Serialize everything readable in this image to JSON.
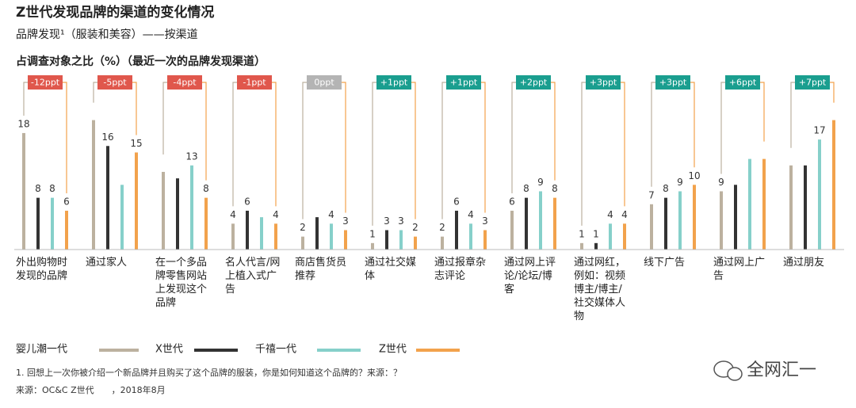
{
  "chart_data": {
    "type": "bar",
    "title": "Z世代发现品牌的渠道的变化情况",
    "subtitle": "品牌发现¹（服装和美容）——按渠道",
    "y_label": "占调查对象之比（%）（最近一次的品牌发现渠道）",
    "categories": [
      "外出购物时发现的品牌",
      "通过家人",
      "在一个多品牌零售网站上发现这个品牌",
      "名人代言/网上植入式广告",
      "商店售货员推荐",
      "通过社交媒体",
      "通过报章杂志评论",
      "通过网上评论/论坛/博客",
      "通过网红，例如：视频博主/博主/社交媒体人物",
      "线下广告",
      "通过网上广告",
      "通过朋友"
    ],
    "changes": [
      "-12ppt",
      "-5ppt",
      "-4ppt",
      "-1ppt",
      "0ppt",
      "+1ppt",
      "+1ppt",
      "+2ppt",
      "+3ppt",
      "+3ppt",
      "+6ppt",
      "+7ppt"
    ],
    "change_colors": [
      "#e0574c",
      "#e0574c",
      "#e0574c",
      "#e0574c",
      "#b4b4b4",
      "#1a9e8f",
      "#1a9e8f",
      "#1a9e8f",
      "#1a9e8f",
      "#1a9e8f",
      "#1a9e8f",
      "#1a9e8f"
    ],
    "series": [
      {
        "name": "婴儿潮一代",
        "color": "#bcb19f",
        "values": [
          18,
          20,
          12,
          4,
          2,
          1,
          2,
          6,
          1,
          7,
          9,
          13
        ],
        "value_labels": [
          "18",
          null,
          null,
          "4",
          "2",
          "1",
          "2",
          "6",
          "1",
          "7",
          "9",
          null
        ]
      },
      {
        "name": "X世代",
        "color": "#333333",
        "values": [
          8,
          16,
          11,
          6,
          5,
          3,
          6,
          8,
          1,
          8,
          10,
          13
        ],
        "value_labels": [
          "8",
          "16",
          null,
          "6",
          null,
          "3",
          "6",
          "8",
          "1",
          "8",
          null,
          null
        ]
      },
      {
        "name": "千禧一代",
        "color": "#86d0ca",
        "values": [
          8,
          10,
          13,
          5,
          4,
          3,
          4,
          9,
          4,
          9,
          14,
          17
        ],
        "value_labels": [
          "8",
          null,
          "13",
          null,
          "4",
          "3",
          "4",
          "9",
          "4",
          "9",
          null,
          "17"
        ]
      },
      {
        "name": "Z世代",
        "color": "#f2a24c",
        "values": [
          6,
          15,
          8,
          4,
          3,
          2,
          3,
          8,
          4,
          10,
          14,
          20
        ],
        "value_labels": [
          "6",
          "15",
          "8",
          "4",
          "3",
          "2",
          "3",
          "8",
          "4",
          "10",
          null,
          null
        ]
      }
    ],
    "footnote": "1.  回想上一次你被介绍一个新品牌并且购买了这个品牌的服装，你是如何知道这个品牌的？来源：？",
    "source": "来源：OC&C Z世代　　，2018年8月",
    "watermark": "全网汇一"
  }
}
